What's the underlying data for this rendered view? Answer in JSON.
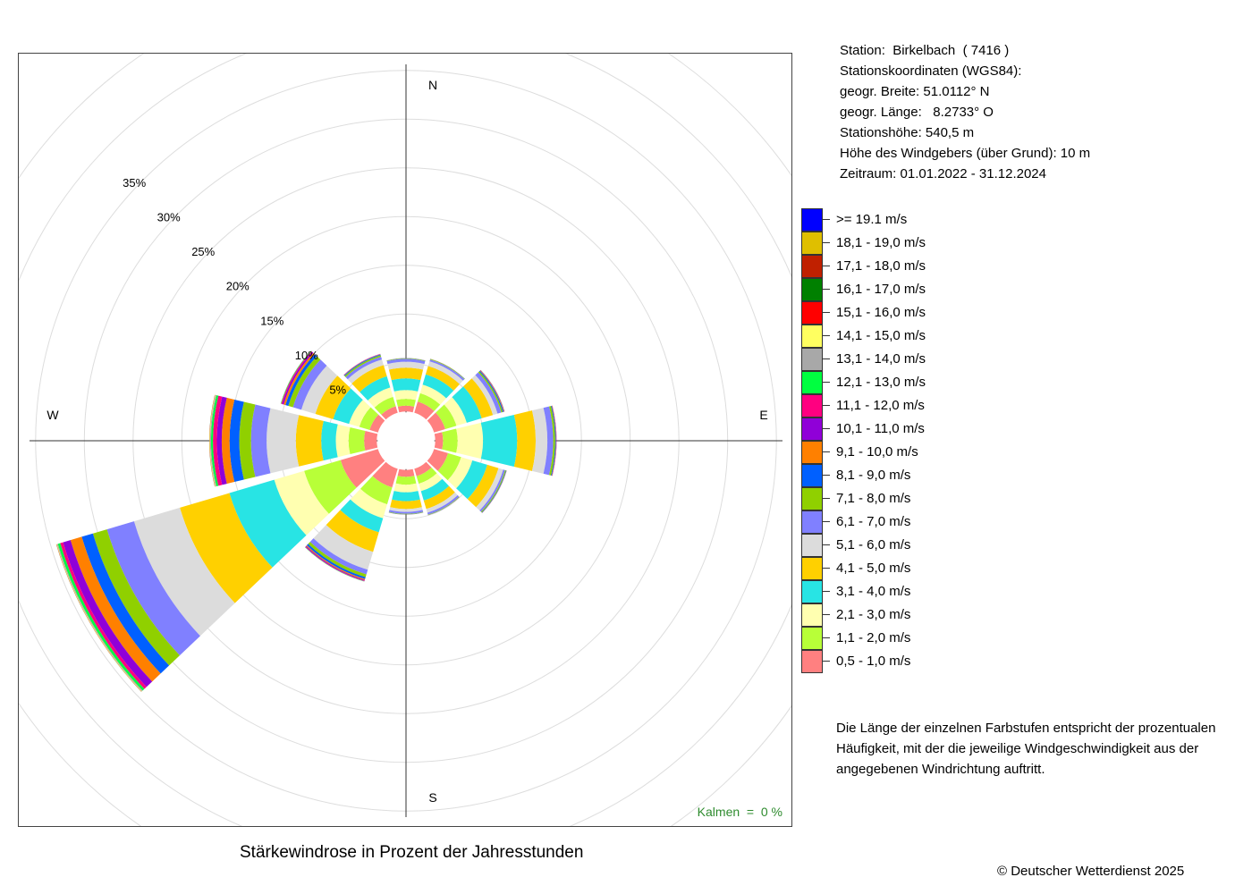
{
  "station": {
    "line1": "Station:  Birkelbach  ( 7416 )",
    "line2": "Stationskoordinaten (WGS84):",
    "line3": "geogr. Breite: 51.0112° N",
    "line4": "geogr. Länge:   8.2733° O",
    "line5": "Stationshöhe: 540,5 m",
    "line6": "Höhe des Windgebers (über Grund): 10 m",
    "line7": "Zeitraum: 01.01.2022 - 31.12.2024"
  },
  "note": "Die Länge der einzelnen Farbstufen entspricht der prozentualen Häufigkeit, mit der die jeweilige Windgeschwindigkeit aus der angegebenen Windrichtung auftritt.",
  "title": "Stärkewindrose in Prozent der Jahresstunden",
  "copyright": "© Deutscher Wetterdienst  2025",
  "calm_label": "Kalmen  =  0 %",
  "legend": [
    {
      "label": ">= 19.1 m/s",
      "color": "#0000ff"
    },
    {
      "label": "18,1 - 19,0 m/s",
      "color": "#dfbf00"
    },
    {
      "label": "17,1 - 18,0 m/s",
      "color": "#c02000"
    },
    {
      "label": "16,1 - 17,0 m/s",
      "color": "#008000"
    },
    {
      "label": "15,1 - 16,0 m/s",
      "color": "#ff0000"
    },
    {
      "label": "14,1 - 15,0 m/s",
      "color": "#ffff60"
    },
    {
      "label": "13,1 - 14,0 m/s",
      "color": "#a8a8a8"
    },
    {
      "label": "12,1 - 13,0 m/s",
      "color": "#00ff40"
    },
    {
      "label": "11,1 - 12,0 m/s",
      "color": "#ff0080"
    },
    {
      "label": "10,1 - 11,0 m/s",
      "color": "#9000d8"
    },
    {
      "label": "9,1 - 10,0 m/s",
      "color": "#ff8000"
    },
    {
      "label": "8,1 - 9,0 m/s",
      "color": "#0060ff"
    },
    {
      "label": "7,1 - 8,0 m/s",
      "color": "#90d000"
    },
    {
      "label": "6,1 - 7,0 m/s",
      "color": "#8080ff"
    },
    {
      "label": "5,1 - 6,0 m/s",
      "color": "#dcdcdc"
    },
    {
      "label": "4,1 - 5,0 m/s",
      "color": "#ffd000"
    },
    {
      "label": "3,1 - 4,0 m/s",
      "color": "#28e4e4"
    },
    {
      "label": "2,1 - 3,0 m/s",
      "color": "#ffffb0"
    },
    {
      "label": "1,1 - 2,0 m/s",
      "color": "#b8ff38"
    },
    {
      "label": "0,5 - 1,0 m/s",
      "color": "#ff8080"
    }
  ],
  "chart_data": {
    "type": "windrose",
    "compass_labels": [
      "N",
      "E",
      "S",
      "W"
    ],
    "ring_labels": [
      "5%",
      "10%",
      "15%",
      "20%",
      "25%",
      "30%",
      "35%"
    ],
    "ring_values": [
      5,
      10,
      15,
      20,
      25,
      30,
      35
    ],
    "inner_radius_percent": 3,
    "calm_percent": 0,
    "directions": [
      0,
      30,
      60,
      90,
      120,
      150,
      180,
      210,
      240,
      270,
      300,
      330
    ],
    "speed_classes": [
      "0,5 - 1,0 m/s",
      "1,1 - 2,0 m/s",
      "2,1 - 3,0 m/s",
      "3,1 - 4,0 m/s",
      "4,1 - 5,0 m/s",
      "5,1 - 6,0 m/s",
      "6,1 - 7,0 m/s",
      "7,1 - 8,0 m/s",
      "8,1 - 9,0 m/s",
      "9,1 - 10,0 m/s",
      "10,1 - 11,0 m/s",
      "11,1 - 12,0 m/s",
      "12,1 - 13,0 m/s",
      "13,1 - 14,0 m/s",
      "14,1 - 15,0 m/s",
      "15,1 - 16,0 m/s",
      "16,1 - 17,0 m/s",
      "17,1 - 18,0 m/s",
      "18,1 - 19,0 m/s",
      ">= 19.1 m/s"
    ],
    "frequencies": [
      [
        0.6,
        0.7,
        0.9,
        1.2,
        1.1,
        0.6,
        0.3,
        0.05,
        0.02,
        0.01,
        0,
        0,
        0,
        0,
        0,
        0,
        0,
        0,
        0,
        0
      ],
      [
        1.2,
        0.9,
        0.9,
        1.1,
        0.9,
        0.5,
        0.2,
        0.05,
        0.02,
        0.01,
        0,
        0,
        0,
        0,
        0,
        0,
        0,
        0,
        0,
        0
      ],
      [
        1.2,
        1.2,
        1.1,
        1.6,
        1.2,
        0.5,
        0.4,
        0.15,
        0.1,
        0.05,
        0.03,
        0.02,
        0.01,
        0,
        0,
        0,
        0,
        0,
        0,
        0
      ],
      [
        0.8,
        1.5,
        2.6,
        3.5,
        1.9,
        1.2,
        0.6,
        0.2,
        0.08,
        0.04,
        0.02,
        0.01,
        0,
        0,
        0,
        0,
        0,
        0,
        0,
        0
      ],
      [
        1.5,
        1.4,
        1.2,
        1.6,
        1.2,
        0.5,
        0.2,
        0.1,
        0.05,
        0.02,
        0.01,
        0,
        0,
        0,
        0,
        0,
        0,
        0,
        0,
        0
      ],
      [
        0.8,
        0.8,
        0.8,
        1.0,
        0.9,
        0.4,
        0.2,
        0.05,
        0.02,
        0.01,
        0,
        0,
        0,
        0,
        0,
        0,
        0,
        0,
        0,
        0
      ],
      [
        0.7,
        0.8,
        0.8,
        0.9,
        0.8,
        0.3,
        0.2,
        0.05,
        0.02,
        0.01,
        0,
        0,
        0,
        0,
        0,
        0,
        0,
        0,
        0,
        0
      ],
      [
        2.0,
        1.8,
        1.5,
        1.5,
        2.1,
        1.9,
        0.5,
        0.3,
        0.2,
        0.1,
        0.08,
        0.05,
        0.03,
        0.02,
        0,
        0,
        0,
        0,
        0,
        0
      ],
      [
        4.0,
        3.9,
        3.2,
        4.8,
        5.3,
        4.9,
        2.9,
        1.5,
        1.2,
        1.2,
        0.8,
        0.3,
        0.25,
        0.1,
        0.05,
        0.02,
        0.01,
        0,
        0,
        0
      ],
      [
        1.3,
        1.6,
        1.3,
        1.5,
        2.6,
        3.0,
        1.6,
        1.2,
        1.0,
        0.8,
        0.5,
        0.4,
        0.2,
        0.1,
        0.05,
        0.02,
        0.01,
        0,
        0,
        0
      ],
      [
        0.9,
        1.1,
        1.1,
        1.7,
        1.9,
        1.5,
        0.9,
        0.5,
        0.3,
        0.2,
        0.15,
        0.1,
        0.05,
        0.02,
        0.01,
        0,
        0,
        0,
        0,
        0
      ],
      [
        0.7,
        1.0,
        1.0,
        1.2,
        1.2,
        0.6,
        0.3,
        0.15,
        0.08,
        0.04,
        0.02,
        0.01,
        0,
        0,
        0,
        0,
        0,
        0,
        0,
        0
      ]
    ]
  }
}
